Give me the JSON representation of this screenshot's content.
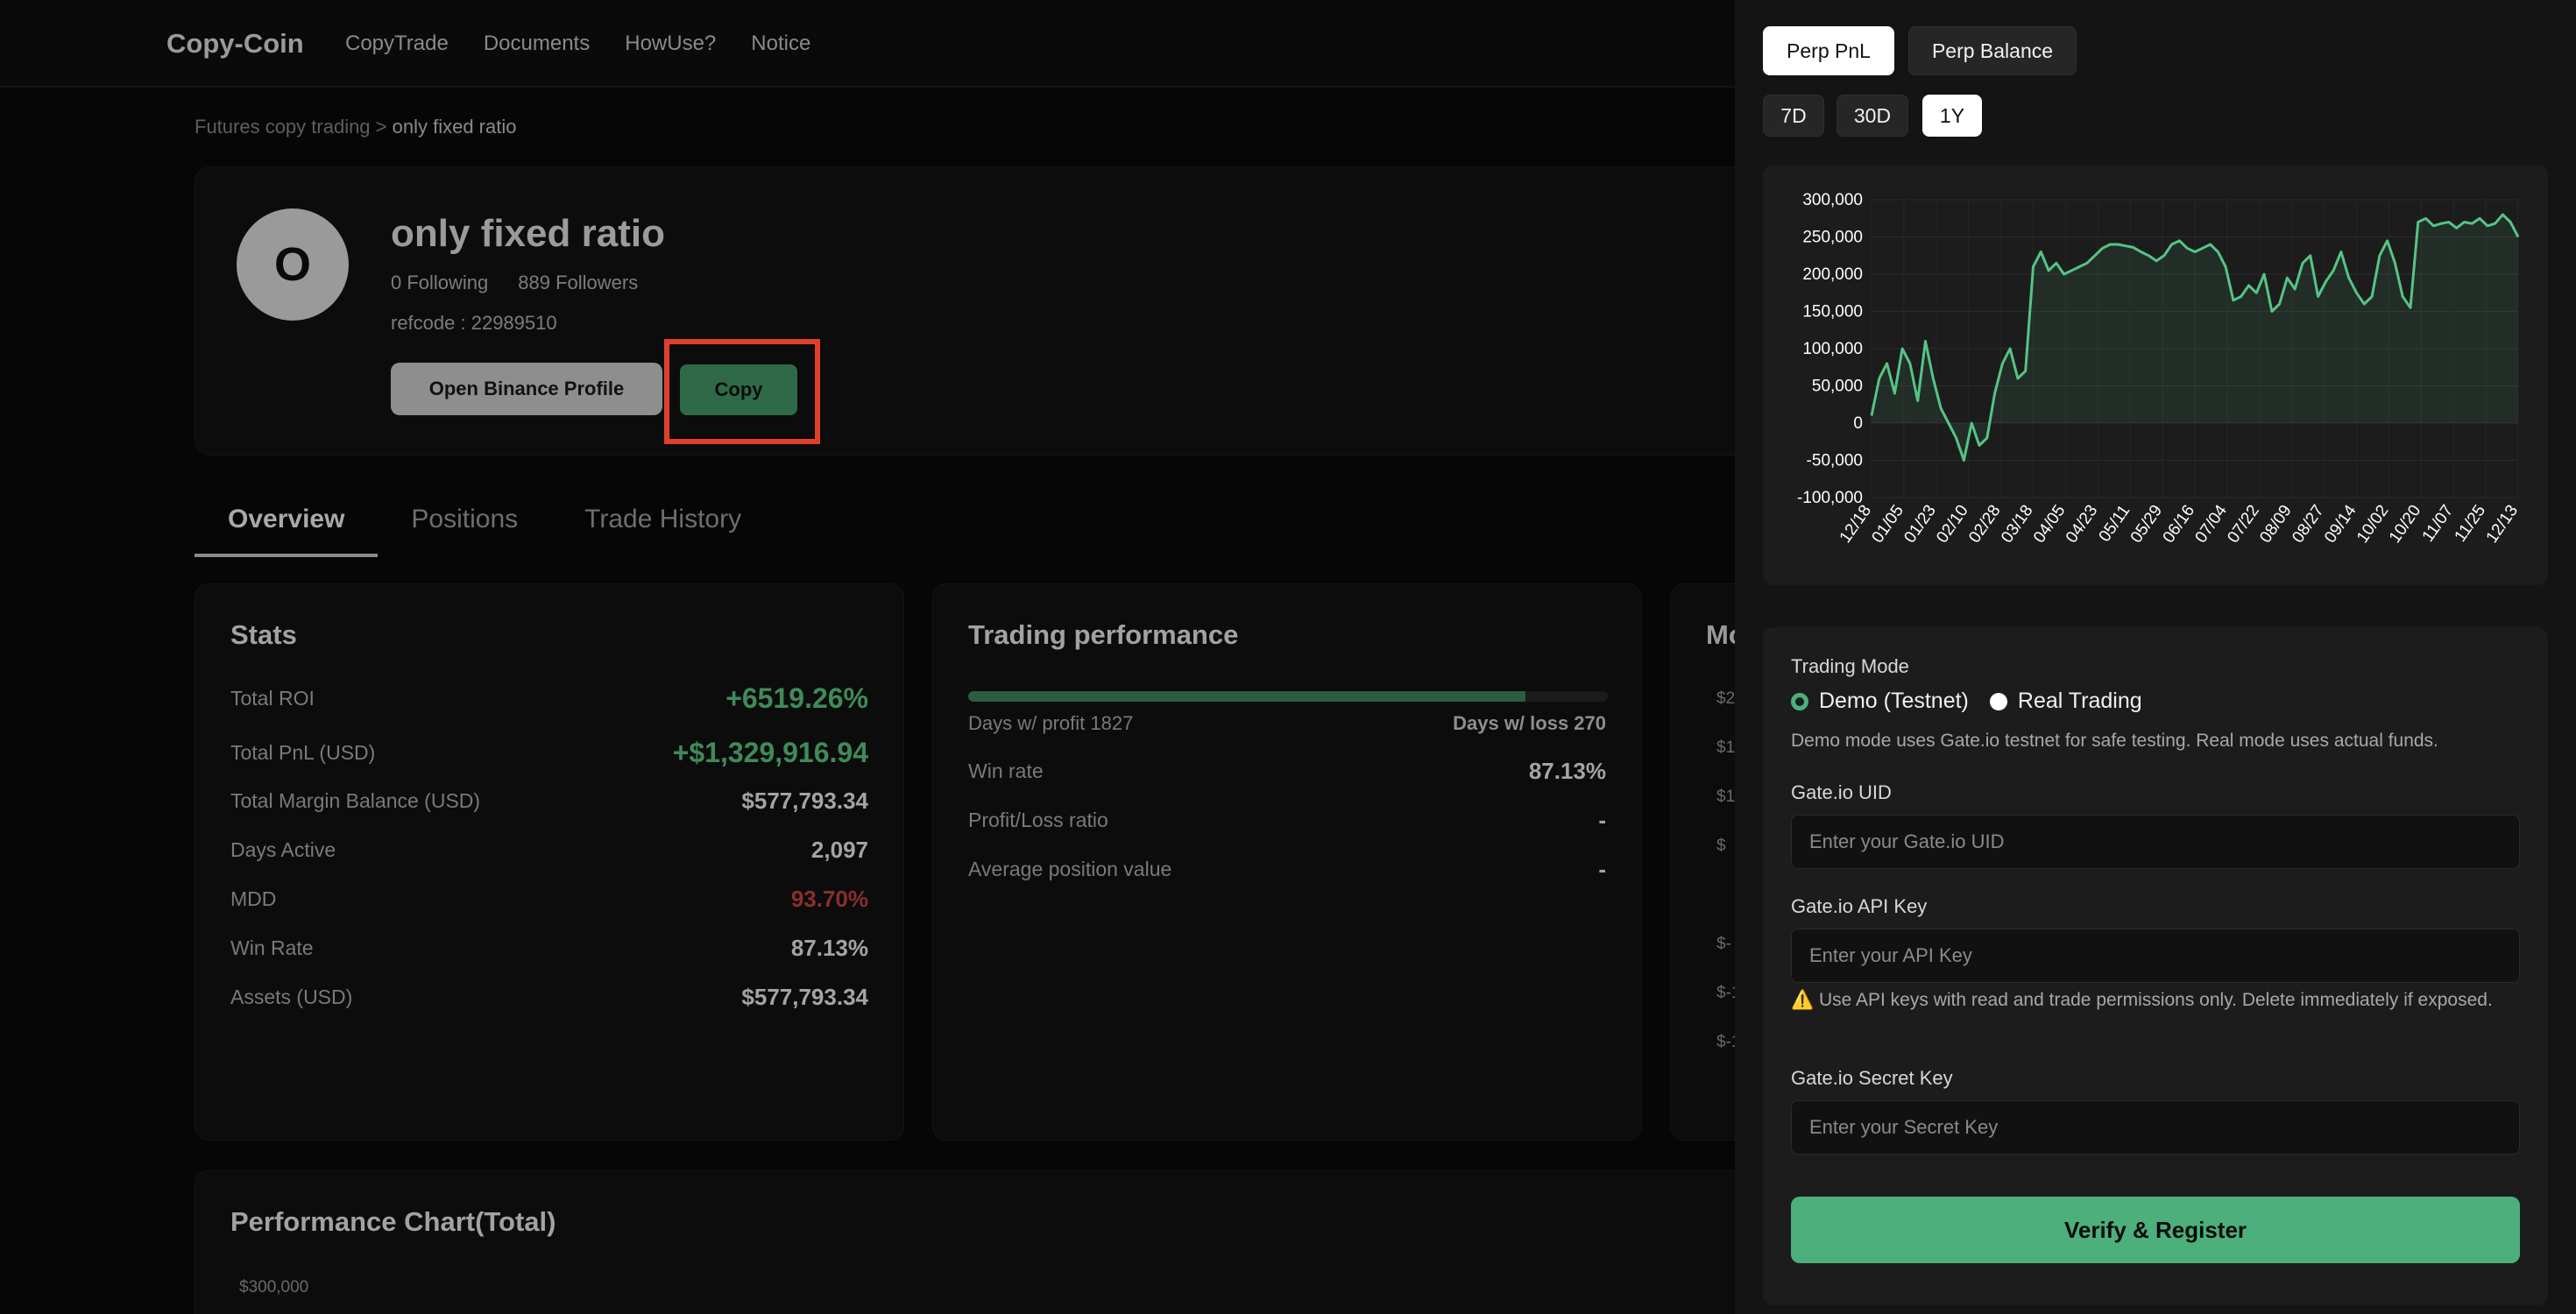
{
  "nav": {
    "brand": "Copy-Coin",
    "links": [
      "CopyTrade",
      "Documents",
      "HowUse?",
      "Notice"
    ]
  },
  "breadcrumb": {
    "parent": "Futures copy trading",
    "separator": " > ",
    "current": "only fixed ratio"
  },
  "profile": {
    "avatar_letter": "O",
    "name": "only fixed ratio",
    "following": "0 Following",
    "followers": "889 Followers",
    "refcode": "refcode : 22989510",
    "binance_button": "Open Binance Profile",
    "copy_button": "Copy"
  },
  "tabs": [
    "Overview",
    "Positions",
    "Trade History"
  ],
  "stats": {
    "title": "Stats",
    "rows": [
      {
        "label": "Total ROI",
        "value": "+6519.26%"
      },
      {
        "label": "Total PnL (USD)",
        "value": "+$1,329,916.94"
      },
      {
        "label": "Total Margin Balance (USD)",
        "value": "$577,793.34"
      },
      {
        "label": "Days Active",
        "value": "2,097"
      },
      {
        "label": "MDD",
        "value": "93.70%"
      },
      {
        "label": "Win Rate",
        "value": "87.13%"
      },
      {
        "label": "Assets (USD)",
        "value": "$577,793.34"
      }
    ]
  },
  "trading_performance": {
    "title": "Trading performance",
    "profit_fraction": 0.871,
    "days_profit": "Days w/ profit 1827",
    "days_loss": "Days w/ loss 270",
    "rows": [
      {
        "label": "Win rate",
        "value": "87.13%"
      },
      {
        "label": "Profit/Loss ratio",
        "value": "-"
      },
      {
        "label": "Average position value",
        "value": "-"
      }
    ]
  },
  "partial_card": {
    "title": "Mo",
    "ticks": [
      "$2",
      "$1",
      "$1",
      "$",
      "$-",
      "$-1",
      "$-1"
    ]
  },
  "performance_chart": {
    "title": "Performance Chart(Total)",
    "first_tick": "$300,000"
  },
  "panel": {
    "metric_tabs": [
      "Perp PnL",
      "Perp Balance"
    ],
    "range_tabs": [
      "7D",
      "30D",
      "1Y"
    ],
    "form": {
      "mode_label": "Trading Mode",
      "mode_demo": "Demo (Testnet)",
      "mode_real": "Real Trading",
      "mode_help": "Demo mode uses Gate.io testnet for safe testing. Real mode uses actual funds.",
      "uid_label": "Gate.io UID",
      "uid_placeholder": "Enter your Gate.io UID",
      "api_label": "Gate.io API Key",
      "api_placeholder": "Enter your API Key",
      "api_warning": "⚠️ Use API keys with read and trade permissions only. Delete immediately if exposed.",
      "secret_label": "Gate.io Secret Key",
      "secret_placeholder": "Enter your Secret Key",
      "submit": "Verify & Register"
    }
  },
  "colors": {
    "accent_green": "#4caf7c",
    "line_green": "#55c485",
    "highlight_red": "#e0402b"
  },
  "chart_data": {
    "type": "area",
    "x_labels": [
      "12/18",
      "01/05",
      "01/23",
      "02/10",
      "02/28",
      "03/18",
      "04/05",
      "04/23",
      "05/11",
      "05/29",
      "06/16",
      "07/04",
      "07/22",
      "08/09",
      "08/27",
      "09/14",
      "10/02",
      "10/20",
      "11/07",
      "11/25",
      "12/13"
    ],
    "y_ticks": [
      "300,000",
      "250,000",
      "200,000",
      "150,000",
      "100,000",
      "50,000",
      "0",
      "-50,000",
      "-100,000"
    ],
    "ylim": [
      -100000,
      300000
    ],
    "grid": true,
    "series": [
      {
        "values": [
          10000,
          60000,
          80000,
          40000,
          100000,
          80000,
          30000,
          110000,
          60000,
          20000,
          0,
          -20000,
          -50000,
          0,
          -30000,
          -20000,
          40000,
          80000,
          100000,
          60000,
          70000,
          210000,
          230000,
          205000,
          215000,
          200000,
          205000,
          210000,
          215000,
          225000,
          235000,
          240000,
          240000,
          238000,
          236000,
          230000,
          225000,
          218000,
          225000,
          240000,
          245000,
          235000,
          230000,
          235000,
          240000,
          230000,
          210000,
          165000,
          170000,
          185000,
          175000,
          200000,
          150000,
          160000,
          195000,
          180000,
          215000,
          225000,
          170000,
          190000,
          205000,
          230000,
          195000,
          175000,
          160000,
          170000,
          225000,
          245000,
          215000,
          170000,
          155000,
          270000,
          275000,
          265000,
          268000,
          270000,
          262000,
          270000,
          268000,
          275000,
          265000,
          268000,
          280000,
          270000,
          250000
        ]
      }
    ]
  }
}
